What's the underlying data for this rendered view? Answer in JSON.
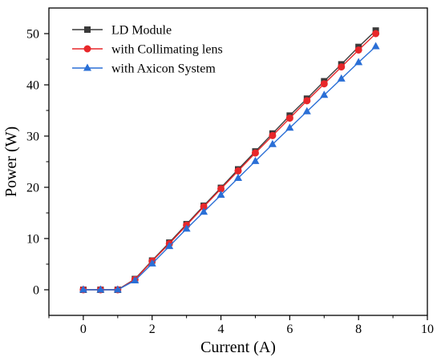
{
  "chart_data": {
    "type": "line",
    "xlabel": "Current (A)",
    "ylabel": "Power (W)",
    "xlim": [
      -1,
      10
    ],
    "ylim": [
      -5,
      55
    ],
    "xticks": [
      0,
      2,
      4,
      6,
      8,
      10
    ],
    "yticks": [
      0,
      10,
      20,
      30,
      40,
      50
    ],
    "x": [
      0,
      0.5,
      1,
      1.5,
      2,
      2.5,
      3,
      3.5,
      4,
      4.5,
      5,
      5.5,
      6,
      6.5,
      7,
      7.5,
      8,
      8.5
    ],
    "legend_position": "top-left",
    "grid": false,
    "series": [
      {
        "name": "LD Module",
        "marker": "square",
        "color": "#3a3a3a",
        "values": [
          0,
          0,
          0,
          2.1,
          5.7,
          9.2,
          12.8,
          16.4,
          19.9,
          23.5,
          27.0,
          30.5,
          34.0,
          37.3,
          40.7,
          44.0,
          47.4,
          50.6
        ]
      },
      {
        "name": "with Collimating lens",
        "marker": "circle",
        "color": "#e8272a",
        "values": [
          0,
          0,
          0,
          2.0,
          5.6,
          9.0,
          12.6,
          16.2,
          19.7,
          23.2,
          26.7,
          30.1,
          33.5,
          36.9,
          40.2,
          43.5,
          46.8,
          50.0
        ]
      },
      {
        "name": "with Axicon System",
        "marker": "triangle",
        "color": "#2a6fd6",
        "values": [
          0,
          0,
          0,
          1.8,
          5.1,
          8.5,
          11.9,
          15.2,
          18.5,
          21.8,
          25.1,
          28.4,
          31.6,
          34.8,
          38.0,
          41.2,
          44.4,
          47.5
        ]
      }
    ]
  }
}
